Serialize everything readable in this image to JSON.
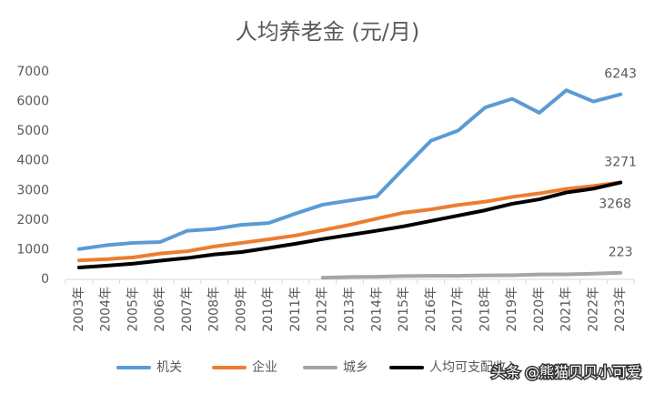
{
  "chart_data": {
    "type": "line",
    "title": "人均养老金 (元/月)",
    "categories": [
      "2003年",
      "2004年",
      "2005年",
      "2006年",
      "2007年",
      "2008年",
      "2009年",
      "2010年",
      "2011年",
      "2012年",
      "2013年",
      "2014年",
      "2015年",
      "2016年",
      "2017年",
      "2018年",
      "2019年",
      "2020年",
      "2021年",
      "2022年",
      "2023年"
    ],
    "series": [
      {
        "name": "机关",
        "color": "#5b9bd5",
        "values": [
          1020,
          1150,
          1230,
          1260,
          1640,
          1700,
          1840,
          1900,
          2220,
          2520,
          2660,
          2800,
          3750,
          4680,
          5020,
          5800,
          6090,
          5620,
          6380,
          6000,
          6243
        ]
      },
      {
        "name": "企业",
        "color": "#ed7d31",
        "values": [
          640,
          680,
          740,
          870,
          950,
          1110,
          1230,
          1350,
          1480,
          1660,
          1840,
          2050,
          2250,
          2360,
          2510,
          2620,
          2780,
          2900,
          3050,
          3150,
          3271
        ]
      },
      {
        "name": "城乡",
        "color": "#a5a5a5",
        "values": [
          null,
          null,
          null,
          null,
          null,
          null,
          null,
          null,
          null,
          55,
          80,
          90,
          110,
          118,
          120,
          135,
          140,
          165,
          170,
          190,
          223
        ]
      },
      {
        "name": "人均可支配收入",
        "color": "#000000",
        "values": [
          400,
          460,
          530,
          630,
          720,
          840,
          920,
          1060,
          1200,
          1360,
          1500,
          1640,
          1790,
          1970,
          2150,
          2330,
          2550,
          2700,
          2930,
          3060,
          3268
        ]
      }
    ],
    "ylim": [
      0,
      7000
    ],
    "yticks": [
      0,
      1000,
      2000,
      3000,
      4000,
      5000,
      6000,
      7000
    ],
    "grid": false,
    "legend": "bottom",
    "watermark": "头条 @熊猫贝贝小可爱"
  }
}
